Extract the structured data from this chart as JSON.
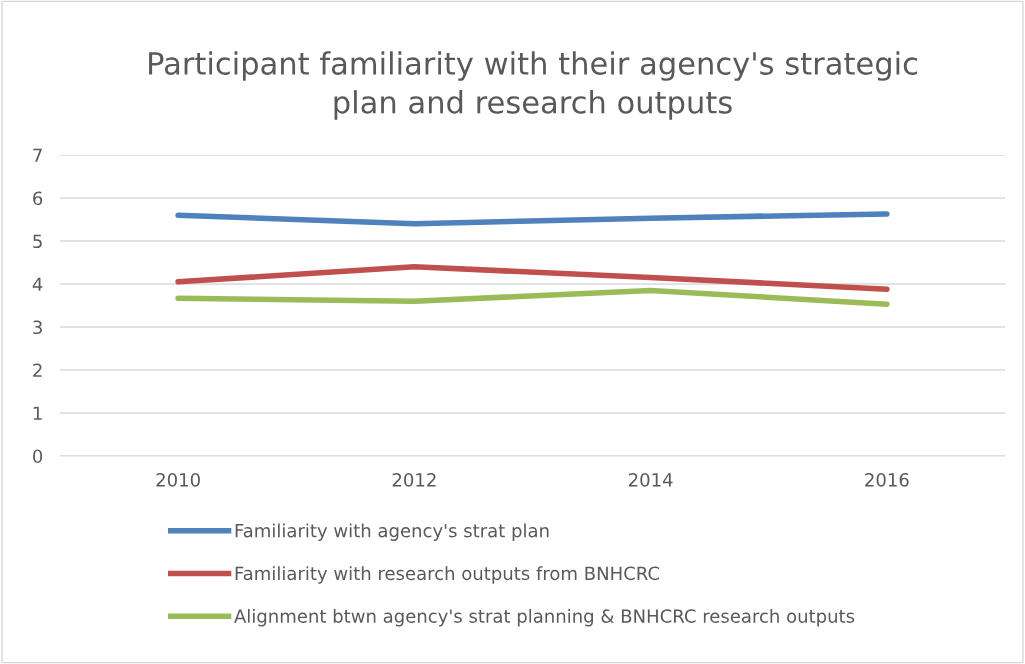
{
  "chart_data": {
    "type": "line",
    "title": "Participant familiarity with their agency's strategic\nplan and research outputs",
    "categories": [
      "2010",
      "2012",
      "2014",
      "2016"
    ],
    "series": [
      {
        "name": "Familiarity with agency's strat plan",
        "color": "#4f81bd",
        "values": [
          5.6,
          5.4,
          5.53,
          5.63
        ]
      },
      {
        "name": "Familiarity with research outputs from BNHCRC",
        "color": "#c0504d",
        "values": [
          4.05,
          4.4,
          4.15,
          3.88
        ]
      },
      {
        "name": "Alignment btwn agency's strat planning & BNHCRC research outputs",
        "color": "#9bbb59",
        "values": [
          3.67,
          3.6,
          3.85,
          3.53
        ]
      }
    ],
    "ylim": [
      0,
      7
    ],
    "yticks": [
      0,
      1,
      2,
      3,
      4,
      5,
      6,
      7
    ],
    "grid": "y",
    "legend": "bottom",
    "marker": "none",
    "line_style": "solid"
  }
}
